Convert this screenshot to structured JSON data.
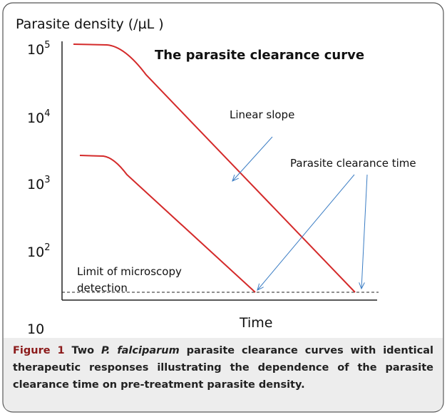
{
  "figure": {
    "y_axis_title": "Parasite density (/µL  )",
    "title": "The parasite clearance curve",
    "y_labels": [
      {
        "base": "10",
        "exp": "5"
      },
      {
        "base": "10",
        "exp": "4"
      },
      {
        "base": "10",
        "exp": "3"
      },
      {
        "base": "10",
        "exp": "2"
      },
      {
        "base": "10",
        "exp": ""
      }
    ],
    "x_axis_title": "Time",
    "annotations": {
      "slope": "Linear slope",
      "clearance": "Parasite clearance time",
      "limit_line1": "Limit of microscopy",
      "limit_line2": "detection"
    }
  },
  "caption": {
    "label": "Figure 1",
    "text_before": "Two",
    "species": "P. falciparum",
    "text_after": "parasite clearance curves with identical therapeutic responses illustrating the dependence of the parasite clearance time on pre-treatment parasite density."
  }
}
